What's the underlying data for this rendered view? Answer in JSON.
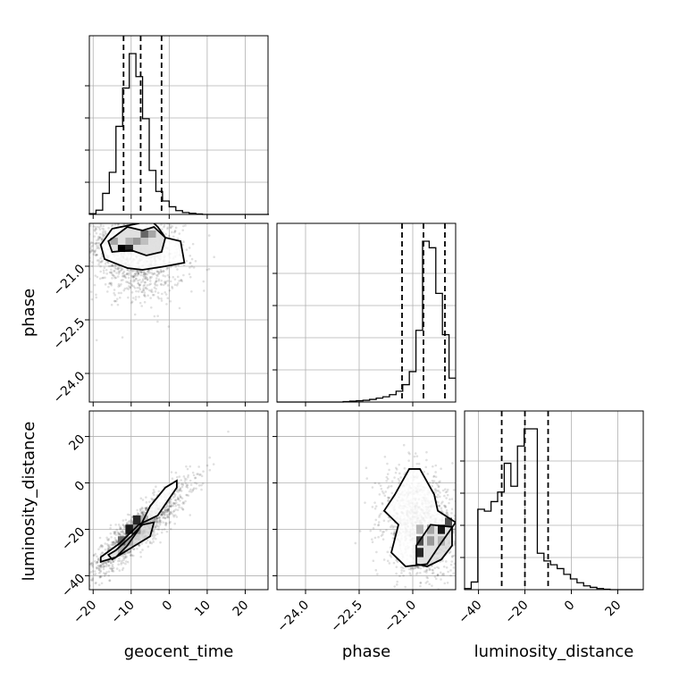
{
  "chart_data": {
    "type": "corner",
    "parameters": [
      "geocent_time",
      "phase",
      "luminosity_distance"
    ],
    "ranges": {
      "geocent_time": [
        -21,
        26
      ],
      "phase": [
        -24.8,
        -19.8
      ],
      "luminosity_distance": [
        -46,
        31
      ]
    },
    "ticks": {
      "geocent_time": [
        -20,
        -10,
        0,
        10,
        20
      ],
      "phase": [
        -24.0,
        -22.5,
        -21.0
      ],
      "luminosity_distance": [
        -40,
        -20,
        0,
        20
      ]
    },
    "tick_labels": {
      "geocent_time": [
        "−20",
        "−10",
        "0",
        "10",
        "20"
      ],
      "phase": [
        "−24.0",
        "−22.5",
        "−21.0"
      ],
      "luminosity_distance": [
        "−40",
        "−20",
        "0",
        "20"
      ]
    },
    "grid": true,
    "histograms": {
      "geocent_time": {
        "bin_start": -21,
        "bin_width": 1.75,
        "counts": [
          2,
          11,
          55,
          110,
          230,
          330,
          420,
          360,
          250,
          115,
          60,
          35,
          20,
          10,
          5,
          3,
          1,
          0,
          0,
          0,
          0,
          0,
          0,
          0,
          0,
          0,
          0
        ],
        "quantiles": [
          -12,
          -7.5,
          -2
        ]
      },
      "phase": {
        "bin_start": -24.8,
        "bin_width": 0.1852,
        "counts": [
          0,
          0,
          0,
          0,
          0,
          0,
          0,
          0,
          0,
          0,
          1,
          2,
          3,
          4,
          6,
          9,
          12,
          17,
          25,
          40,
          70,
          165,
          370,
          355,
          250,
          155,
          55
        ],
        "quantiles": [
          -21.3,
          -20.7,
          -20.1
        ]
      },
      "luminosity_distance": {
        "bin_start": -46,
        "bin_width": 2.85,
        "counts": [
          3,
          20,
          210,
          205,
          230,
          255,
          330,
          270,
          375,
          420,
          420,
          95,
          75,
          65,
          55,
          40,
          28,
          18,
          10,
          6,
          3,
          1,
          0,
          0,
          0,
          0,
          0
        ],
        "quantiles": [
          -30,
          -20,
          -10
        ]
      }
    },
    "scatter_centers": {
      "phase_vs_geocent_time": {
        "mean": [
          -9,
          -20.6
        ],
        "sd": [
          6.5,
          0.65
        ]
      },
      "luminosity_distance_vs_geocent_time": {
        "mean": [
          -8,
          -20
        ],
        "sd": [
          6.5,
          10
        ]
      },
      "luminosity_distance_vs_phase": {
        "mean": [
          -20.8,
          -18
        ],
        "sd": [
          0.5,
          11
        ]
      }
    },
    "contours": {
      "phase_vs_geocent_time": [
        [
          [
            -16,
            -20.3
          ],
          [
            -11,
            -19.9
          ],
          [
            -7,
            -20.0
          ],
          [
            -4,
            -19.9
          ],
          [
            -1,
            -20.2
          ],
          [
            -2,
            -20.6
          ],
          [
            -6,
            -20.7
          ],
          [
            -10,
            -20.55
          ],
          [
            -15,
            -20.6
          ],
          [
            -16,
            -20.3
          ]
        ],
        [
          [
            -18,
            -20.4
          ],
          [
            -15,
            -19.95
          ],
          [
            -8,
            -19.8
          ],
          [
            -5,
            -19.7
          ],
          [
            -3,
            -19.9
          ],
          [
            -1,
            -20.2
          ],
          [
            3,
            -20.3
          ],
          [
            4,
            -20.9
          ],
          [
            -1,
            -21.0
          ],
          [
            -7,
            -21.1
          ],
          [
            -11,
            -21.05
          ],
          [
            -17,
            -20.8
          ],
          [
            -18,
            -20.4
          ]
        ]
      ],
      "luminosity_distance_vs_geocent_time": [
        [
          [
            -16,
            -31
          ],
          [
            -14,
            -29
          ],
          [
            -10,
            -23
          ],
          [
            -7,
            -18
          ],
          [
            -4,
            -17
          ],
          [
            -5,
            -23
          ],
          [
            -9,
            -27
          ],
          [
            -12,
            -30
          ],
          [
            -15,
            -33
          ],
          [
            -16,
            -31
          ]
        ],
        [
          [
            -18,
            -32
          ],
          [
            -13,
            -26
          ],
          [
            -8,
            -18
          ],
          [
            -3,
            -14
          ],
          [
            2,
            -2
          ],
          [
            2,
            1
          ],
          [
            -1,
            -2
          ],
          [
            -5,
            -10
          ],
          [
            -8,
            -20
          ],
          [
            -11,
            -27
          ],
          [
            -14,
            -32
          ],
          [
            -18,
            -34
          ],
          [
            -18,
            -32
          ]
        ]
      ],
      "luminosity_distance_vs_phase": [
        [
          [
            -20.9,
            -35
          ],
          [
            -20.9,
            -27
          ],
          [
            -20.5,
            -18
          ],
          [
            -19.9,
            -19
          ],
          [
            -19.9,
            -27
          ],
          [
            -20.2,
            -33
          ],
          [
            -20.6,
            -36
          ],
          [
            -20.9,
            -35
          ]
        ],
        [
          [
            -21.6,
            -30
          ],
          [
            -21.4,
            -18
          ],
          [
            -21.8,
            -12
          ],
          [
            -21.5,
            -5
          ],
          [
            -21.1,
            6
          ],
          [
            -20.8,
            6
          ],
          [
            -20.4,
            -5
          ],
          [
            -20.3,
            -12
          ],
          [
            -19.8,
            -17
          ],
          [
            -20.3,
            -28
          ],
          [
            -20.6,
            -35
          ],
          [
            -21.2,
            -36
          ],
          [
            -21.6,
            -30
          ]
        ]
      ]
    },
    "density_cells": {
      "phase_vs_geocent_time": [
        [
          -12.5,
          -20.5,
          1.0
        ],
        [
          -10.5,
          -20.5,
          0.85
        ],
        [
          -8.5,
          -20.3,
          0.4
        ],
        [
          -6.5,
          -20.1,
          0.6
        ],
        [
          -4.5,
          -20.1,
          0.35
        ],
        [
          -14.5,
          -20.3,
          0.35
        ],
        [
          -10.5,
          -20.3,
          0.3
        ],
        [
          -6.5,
          -20.3,
          0.25
        ]
      ],
      "luminosity_distance_vs_geocent_time": [
        [
          -12.5,
          -25,
          0.6
        ],
        [
          -10.5,
          -20,
          0.9
        ],
        [
          -8.5,
          -16,
          0.85
        ],
        [
          -10.5,
          -25,
          0.35
        ],
        [
          -8.5,
          -20,
          0.45
        ],
        [
          -12.5,
          -29,
          0.3
        ],
        [
          -6.5,
          -16,
          0.3
        ]
      ],
      "luminosity_distance_vs_phase": [
        [
          -20.8,
          -30,
          0.85
        ],
        [
          -20.8,
          -25,
          0.7
        ],
        [
          -20.2,
          -20,
          0.9
        ],
        [
          -20.0,
          -17,
          0.7
        ],
        [
          -20.5,
          -25,
          0.4
        ],
        [
          -20.5,
          -20,
          0.35
        ],
        [
          -20.2,
          -25,
          0.3
        ],
        [
          -20.8,
          -20,
          0.3
        ]
      ]
    }
  }
}
